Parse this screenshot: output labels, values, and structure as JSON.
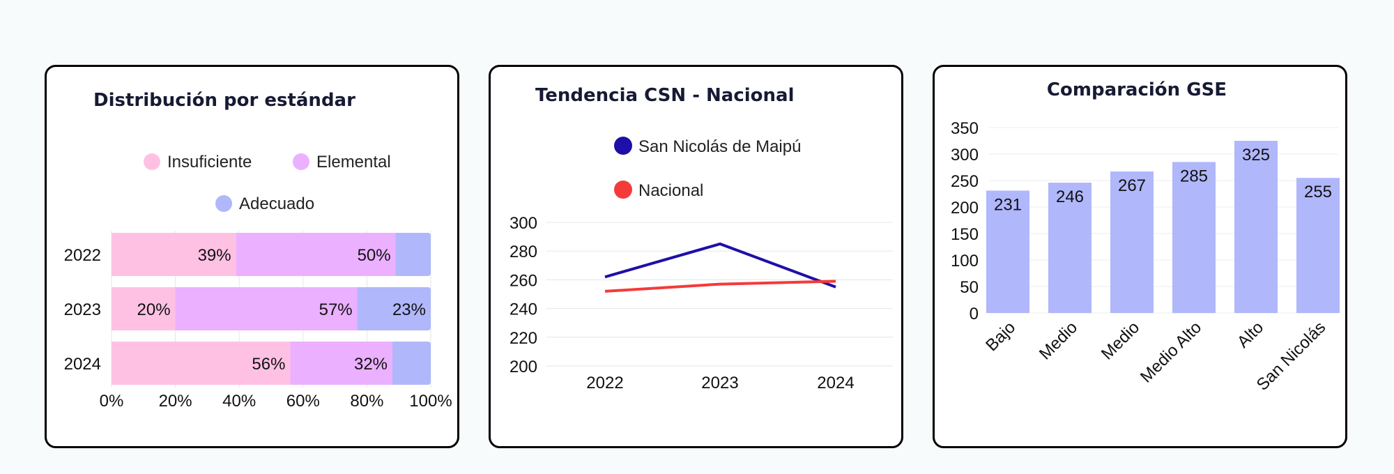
{
  "chart_data": [
    {
      "type": "bar",
      "orientation": "horizontal",
      "stacked": true,
      "title": "Distribución por estándar",
      "categories": [
        "2022",
        "2023",
        "2024"
      ],
      "series": [
        {
          "name": "Insuficiente",
          "color": "#ffc1e3",
          "values": [
            39,
            20,
            56
          ],
          "labels": [
            "39%",
            "20%",
            "56%"
          ]
        },
        {
          "name": "Elemental",
          "color": "#ebb0ff",
          "values": [
            50,
            57,
            32
          ],
          "labels": [
            "50%",
            "57%",
            "32%"
          ]
        },
        {
          "name": "Adecuado",
          "color": "#b0b7fb",
          "values": [
            11,
            23,
            12
          ],
          "labels": [
            "",
            "23%",
            ""
          ]
        }
      ],
      "xticks": [
        "0%",
        "20%",
        "40%",
        "60%",
        "80%",
        "100%"
      ],
      "xlim": [
        0,
        100
      ],
      "grid": true,
      "legend": "top"
    },
    {
      "type": "line",
      "title": "Tendencia CSN - Nacional",
      "x": [
        "2022",
        "2023",
        "2024"
      ],
      "series": [
        {
          "name": "San Nicolás de Maipú",
          "color": "#1e0fa8",
          "values": [
            262,
            285,
            255
          ]
        },
        {
          "name": "Nacional",
          "color": "#f43a3a",
          "values": [
            252,
            257,
            259
          ]
        }
      ],
      "yticks": [
        "200",
        "220",
        "240",
        "260",
        "280",
        "300"
      ],
      "ylim": [
        200,
        300
      ],
      "grid": true,
      "legend": "top"
    },
    {
      "type": "bar",
      "title": "Comparación GSE",
      "categories": [
        "Bajo",
        "Medio",
        "Medio",
        "Medio Alto",
        "Alto",
        "San Nicolás"
      ],
      "values": [
        231,
        246,
        267,
        285,
        325,
        255
      ],
      "color": "#b0b7fb",
      "yticks": [
        "0",
        "50",
        "100",
        "150",
        "200",
        "250",
        "300",
        "350"
      ],
      "ylim": [
        0,
        350
      ],
      "grid": true
    }
  ]
}
